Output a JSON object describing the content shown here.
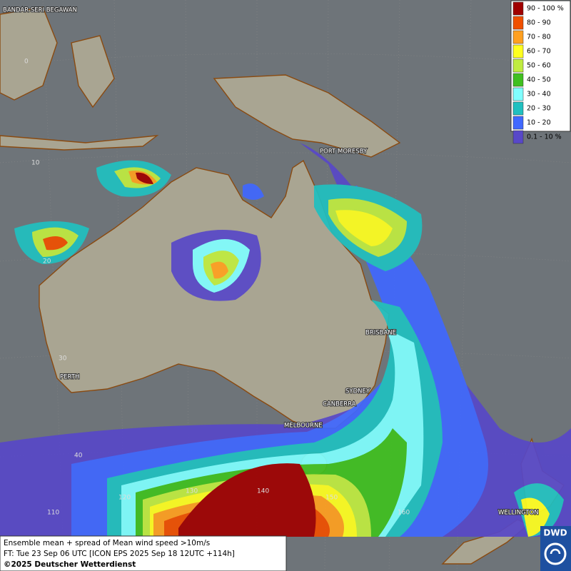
{
  "legend": {
    "items": [
      {
        "label": "90 - 100 %",
        "color": "#a00000"
      },
      {
        "label": "80 - 90",
        "color": "#f05000"
      },
      {
        "label": "70 - 80",
        "color": "#ffa020"
      },
      {
        "label": "60 - 70",
        "color": "#ffff20"
      },
      {
        "label": "50 - 60",
        "color": "#c0ec40"
      },
      {
        "label": "40 - 50",
        "color": "#40c020"
      },
      {
        "label": "30 - 40",
        "color": "#80ffff"
      },
      {
        "label": "20 - 30",
        "color": "#20c0c0"
      },
      {
        "label": "10 - 20",
        "color": "#4068ff"
      },
      {
        "label": "0.1 - 10 %",
        "color": "#5848c8"
      }
    ]
  },
  "cities": [
    "BANDAR SERI BEGAWAN",
    "PORT MORESBY",
    "BRISBANE",
    "SYDNEY",
    "CANBERRA",
    "MELBOURNE",
    "PERTH",
    "WELLINGTON"
  ],
  "latitude_labels": [
    "0",
    "10",
    "20",
    "30",
    "40"
  ],
  "longitude_labels": [
    "110",
    "120",
    "130",
    "140",
    "150",
    "160"
  ],
  "footer": {
    "description": "Ensemble mean + spread of Mean wind speed >10m/s",
    "forecast": "FT: Tue 23 Sep 06 UTC [ICON EPS 2025 Sep 18 12UTC +114h]",
    "copyright": "©2025 Deutscher Wetterdienst"
  },
  "logo": "DWD"
}
